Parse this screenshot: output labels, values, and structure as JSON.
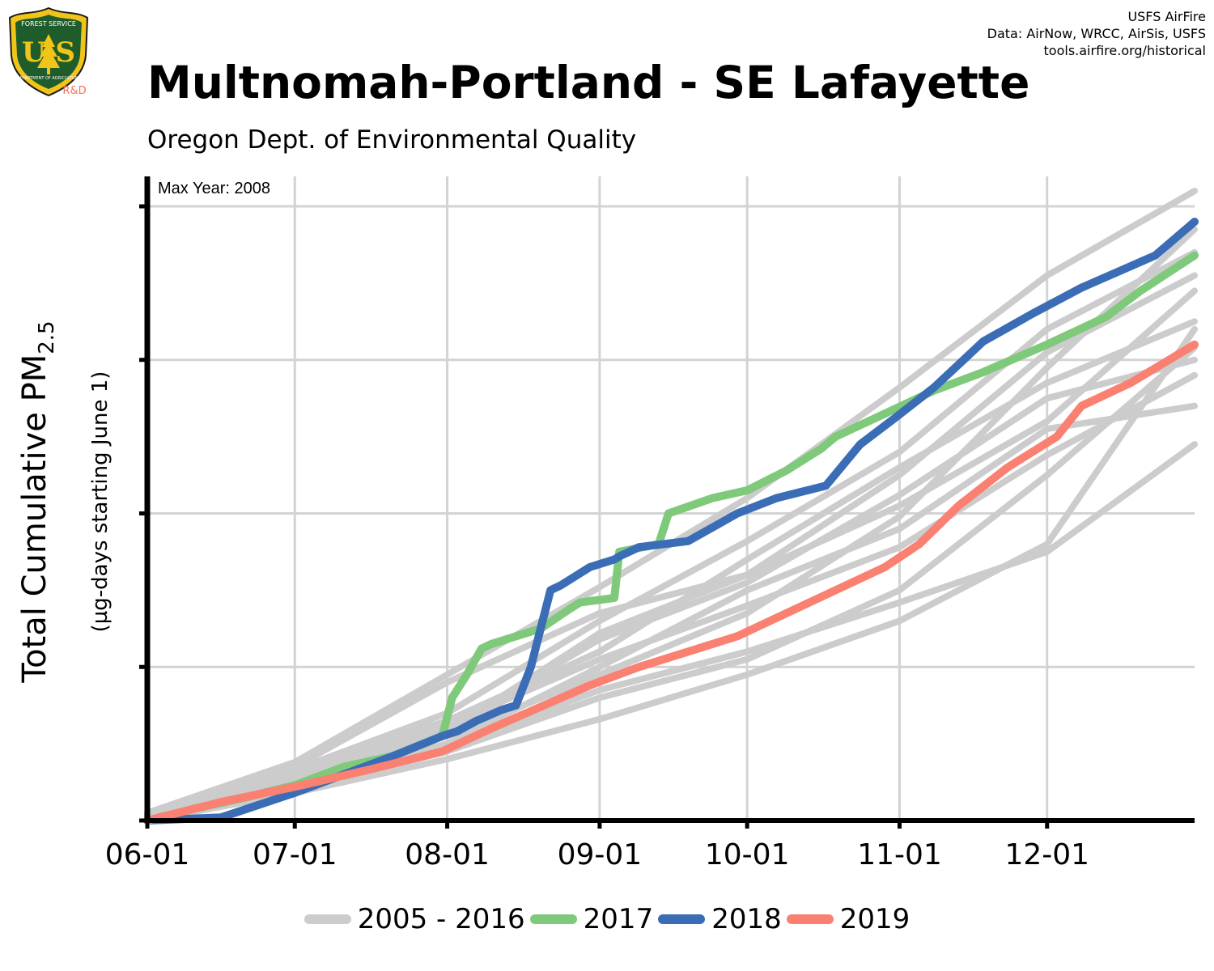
{
  "header": {
    "title": "Multnomah-Portland - SE Lafayette",
    "subtitle": "Oregon Dept. of Environmental Quality",
    "credits": [
      "USFS AirFire",
      "Data: AirNow, WRCC, AirSis, USFS",
      "tools.airfire.org/historical"
    ],
    "logo": {
      "icon": "usfs-shield-icon",
      "top_text": "FOREST SERVICE",
      "letters": "U S",
      "bottom_text": "DEPARTMENT OF AGRICULTURE",
      "tag": "R&D"
    }
  },
  "chart_data": {
    "type": "line",
    "title": "Multnomah-Portland - SE Lafayette",
    "ylabel_main": "Total Cumulative PM",
    "ylabel_sub": "2.5",
    "ylabel_note": "(µg-days starting June 1)",
    "annotation": "Max Year: 2008",
    "x_ticks": [
      "06-01",
      "07-01",
      "08-01",
      "09-01",
      "10-01",
      "11-01",
      "12-01"
    ],
    "x_tick_days": [
      0,
      30,
      61,
      92,
      122,
      153,
      183
    ],
    "x_range_days": [
      0,
      213
    ],
    "y_range": [
      0,
      4
    ],
    "y_ticks": [
      0,
      1,
      2,
      3,
      4
    ],
    "y_tick_labels_shown": false,
    "grid": true,
    "legend_position": "bottom",
    "colors": {
      "history": "#cccccc",
      "y2017": "#7ec97a",
      "y2018": "#3a6db5",
      "y2019": "#fa8072"
    },
    "background_series": [
      {
        "x": [
          0,
          30,
          61,
          92,
          122,
          153,
          183,
          213
        ],
        "y": [
          0.05,
          0.38,
          0.95,
          1.52,
          2.1,
          2.82,
          3.55,
          4.1
        ]
      },
      {
        "x": [
          0,
          30,
          61,
          92,
          122,
          153,
          183,
          213
        ],
        "y": [
          0.03,
          0.25,
          0.55,
          0.95,
          1.35,
          1.98,
          2.95,
          3.85
        ]
      },
      {
        "x": [
          0,
          30,
          61,
          92,
          122,
          153,
          183,
          213
        ],
        "y": [
          0.02,
          0.3,
          0.62,
          1.05,
          1.4,
          1.78,
          2.38,
          2.9
        ]
      },
      {
        "x": [
          0,
          30,
          61,
          92,
          122,
          153,
          183,
          213
        ],
        "y": [
          0.01,
          0.22,
          0.48,
          0.85,
          1.1,
          1.42,
          1.75,
          2.45
        ]
      },
      {
        "x": [
          0,
          30,
          61,
          92,
          122,
          153,
          183,
          213
        ],
        "y": [
          0.0,
          0.18,
          0.4,
          0.66,
          0.95,
          1.3,
          1.8,
          3.2
        ]
      },
      {
        "x": [
          0,
          30,
          61,
          92,
          122,
          153,
          183,
          213
        ],
        "y": [
          0.04,
          0.35,
          0.9,
          1.35,
          1.6,
          2.05,
          2.6,
          3.45
        ]
      },
      {
        "x": [
          0,
          30,
          61,
          92,
          122,
          153,
          183,
          213
        ],
        "y": [
          0.03,
          0.2,
          0.45,
          0.8,
          1.05,
          1.5,
          2.25,
          3.08
        ]
      },
      {
        "x": [
          0,
          30,
          61,
          92,
          122,
          153,
          183,
          213
        ],
        "y": [
          0.02,
          0.33,
          0.7,
          1.3,
          1.82,
          2.4,
          3.2,
          3.7
        ]
      },
      {
        "x": [
          0,
          30,
          61,
          92,
          122,
          153,
          183,
          213
        ],
        "y": [
          0.02,
          0.28,
          0.6,
          1.18,
          1.55,
          2.12,
          2.75,
          3.0
        ]
      },
      {
        "x": [
          0,
          30,
          61,
          92,
          122,
          153,
          183,
          213
        ],
        "y": [
          0.01,
          0.24,
          0.5,
          1.0,
          1.5,
          1.9,
          2.55,
          2.7
        ]
      },
      {
        "x": [
          0,
          30,
          61,
          92,
          122,
          153,
          183,
          213
        ],
        "y": [
          0.03,
          0.32,
          0.65,
          1.1,
          1.7,
          2.3,
          2.85,
          3.25
        ]
      },
      {
        "x": [
          0,
          30,
          61,
          92,
          122,
          153,
          183,
          213
        ],
        "y": [
          0.02,
          0.27,
          0.58,
          1.22,
          1.6,
          2.25,
          3.05,
          3.55
        ]
      }
    ],
    "series": [
      {
        "name": "2017",
        "color": "#7ec97a",
        "x": [
          0,
          10,
          20,
          30,
          40,
          50,
          60,
          62,
          65,
          68,
          70,
          80,
          86,
          88,
          95,
          96,
          104,
          106,
          115,
          122,
          130,
          137,
          140,
          150,
          160,
          170,
          183,
          195,
          202,
          213
        ],
        "y": [
          0.0,
          0.08,
          0.15,
          0.23,
          0.35,
          0.42,
          0.55,
          0.8,
          0.95,
          1.12,
          1.15,
          1.25,
          1.38,
          1.42,
          1.45,
          1.75,
          1.8,
          2.0,
          2.1,
          2.15,
          2.28,
          2.42,
          2.5,
          2.65,
          2.8,
          2.92,
          3.1,
          3.28,
          3.45,
          3.68
        ]
      },
      {
        "name": "2018",
        "color": "#3a6db5",
        "x": [
          0,
          15,
          30,
          40,
          50,
          60,
          63,
          67,
          72,
          75,
          78,
          80,
          82,
          84,
          90,
          95,
          96,
          100,
          110,
          120,
          128,
          138,
          145,
          152,
          160,
          166,
          170,
          180,
          190,
          205,
          213
        ],
        "y": [
          0.0,
          0.02,
          0.18,
          0.3,
          0.42,
          0.55,
          0.58,
          0.65,
          0.72,
          0.75,
          1.0,
          1.25,
          1.5,
          1.53,
          1.65,
          1.7,
          1.72,
          1.78,
          1.82,
          2.0,
          2.1,
          2.18,
          2.45,
          2.62,
          2.82,
          3.0,
          3.12,
          3.3,
          3.47,
          3.68,
          3.9
        ]
      },
      {
        "name": "2019",
        "color": "#fa8072",
        "x": [
          0,
          15,
          30,
          45,
          60,
          70,
          80,
          90,
          100,
          110,
          120,
          130,
          140,
          150,
          157,
          165,
          175,
          185,
          190,
          200,
          213
        ],
        "y": [
          0.0,
          0.12,
          0.22,
          0.33,
          0.45,
          0.6,
          0.74,
          0.88,
          1.0,
          1.1,
          1.2,
          1.35,
          1.5,
          1.65,
          1.8,
          2.05,
          2.3,
          2.5,
          2.7,
          2.85,
          3.1
        ]
      }
    ],
    "legend": [
      {
        "label": "2005 - 2016",
        "color": "#cccccc"
      },
      {
        "label": "2017",
        "color": "#7ec97a"
      },
      {
        "label": "2018",
        "color": "#3a6db5"
      },
      {
        "label": "2019",
        "color": "#fa8072"
      }
    ]
  }
}
